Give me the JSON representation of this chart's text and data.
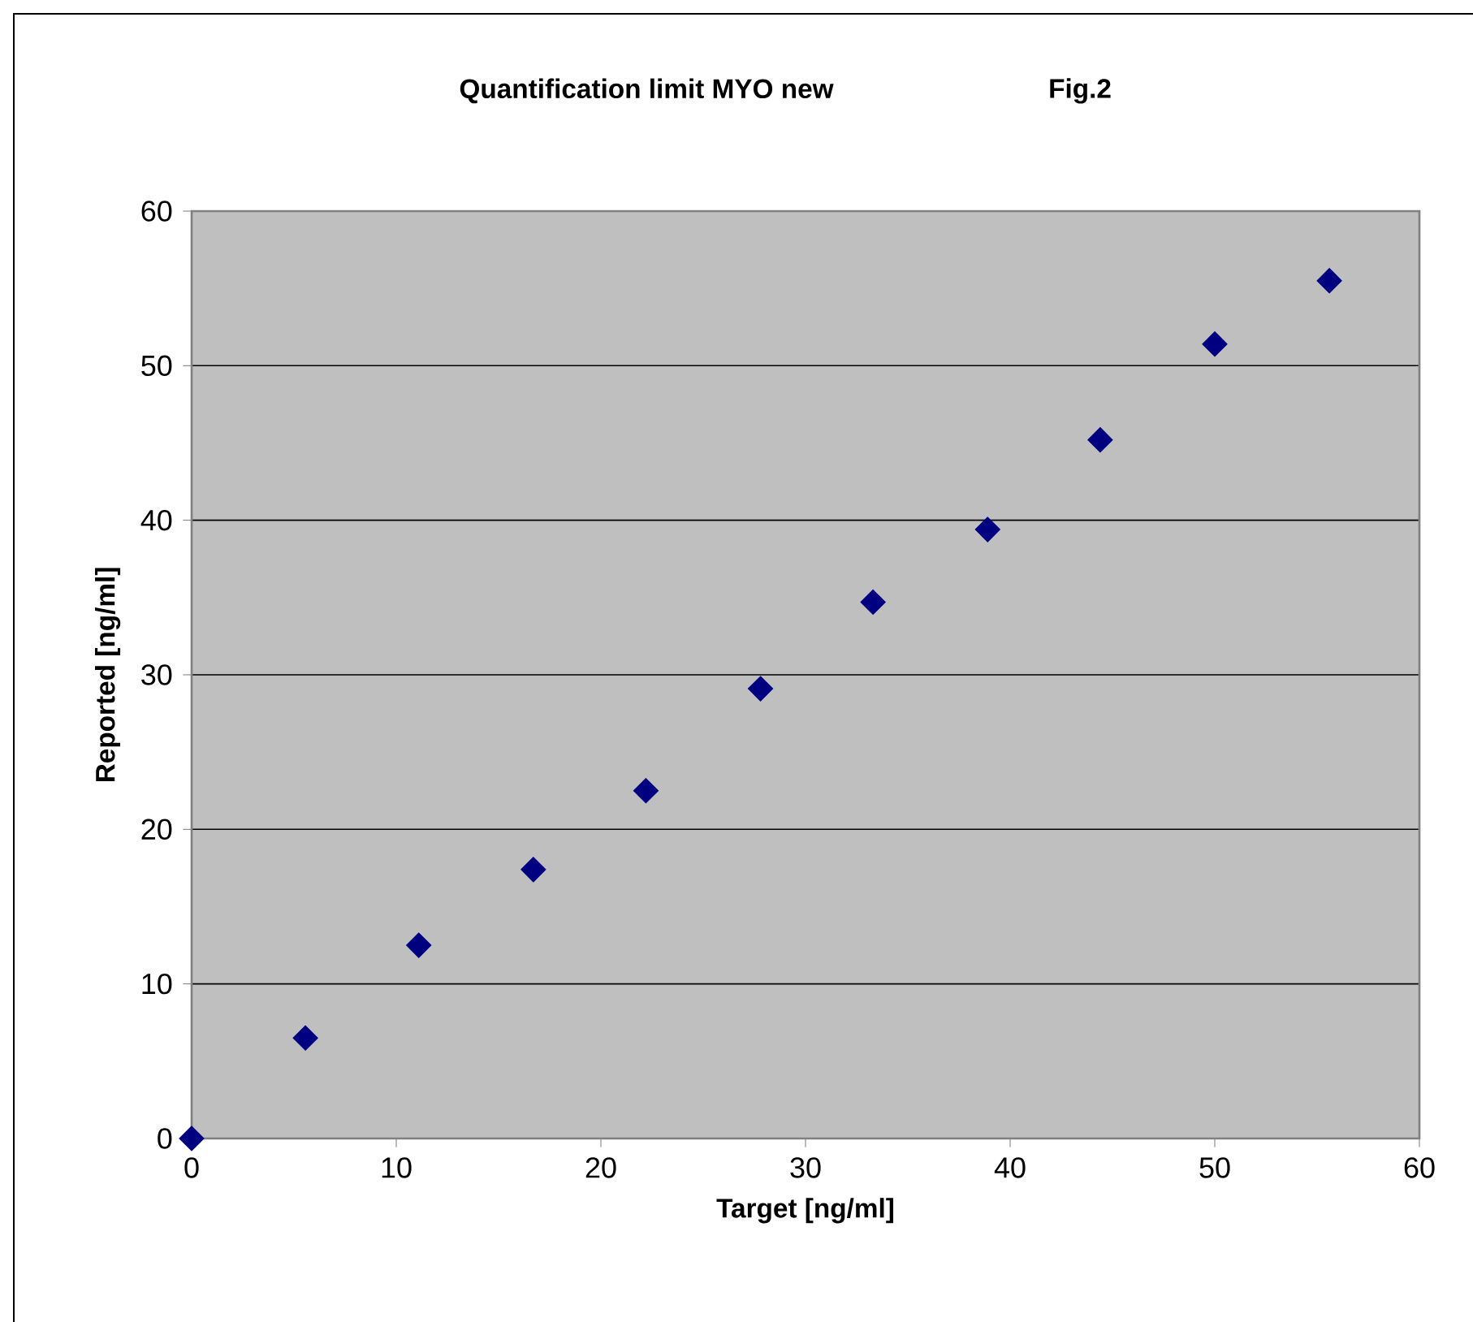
{
  "chart_data": {
    "type": "scatter",
    "title": "Quantification limit MYO new",
    "annotations": [
      "Fig.2"
    ],
    "xlabel": "Target [ng/ml]",
    "ylabel": "Reported [ng/ml]",
    "x": [
      0,
      5.56,
      11.1,
      16.7,
      22.2,
      27.8,
      33.3,
      38.9,
      44.4,
      50,
      55.6
    ],
    "values": [
      0,
      6.5,
      12.5,
      17.4,
      22.5,
      29.1,
      34.7,
      39.4,
      45.2,
      51.4,
      55.5
    ],
    "color": "#000080",
    "marker": "diamond",
    "xlim": [
      0,
      60
    ],
    "ylim": [
      0,
      60
    ],
    "xticks": [
      0,
      10,
      20,
      30,
      40,
      50,
      60
    ],
    "yticks": [
      0,
      10,
      20,
      30,
      40,
      50,
      60
    ],
    "grid": "y"
  }
}
